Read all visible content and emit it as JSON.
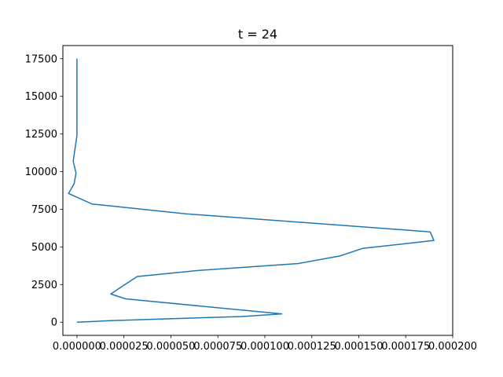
{
  "chart_data": {
    "type": "line",
    "title": "t = 24",
    "xlabel": "",
    "ylabel": "",
    "xlim": [
      -7.5e-06,
      0.0002
    ],
    "ylim": [
      -875,
      18375
    ],
    "x_ticks": [
      0.0,
      2.5e-05,
      5e-05,
      7.5e-05,
      0.0001,
      0.000125,
      0.00015,
      0.000175,
      0.0002
    ],
    "x_tick_labels": [
      "0.000000",
      "0.000025",
      "0.000050",
      "0.000075",
      "0.000100",
      "0.000125",
      "0.000150",
      "0.000175",
      "0.000200"
    ],
    "y_ticks": [
      0,
      2500,
      5000,
      7500,
      10000,
      12500,
      15000,
      17500
    ],
    "y_tick_labels": [
      "0",
      "2500",
      "5000",
      "7500",
      "10000",
      "12500",
      "15000",
      "17500"
    ],
    "grid": false,
    "colors": {
      "line": "#1f77b4",
      "axes": "#000000",
      "background": "#ffffff"
    },
    "series": [
      {
        "x": [
          0.0,
          1.8e-05,
          8.8e-05,
          0.000109,
          2.6e-05,
          1.8e-05,
          2.25e-05,
          3.2e-05,
          6.5e-05,
          0.000118,
          0.00014,
          0.000152,
          0.00019,
          0.000188,
          5.8e-05,
          8e-06,
          -4.5e-06,
          -1.5e-06,
          -5e-07,
          -2e-06,
          0.0,
          0.0,
          0.0,
          0.0
        ],
        "y": [
          0,
          100,
          380,
          550,
          1550,
          1870,
          2250,
          3030,
          3440,
          3900,
          4400,
          4900,
          5430,
          6000,
          7200,
          7850,
          8550,
          9200,
          9900,
          10700,
          12400,
          14000,
          16000,
          17500
        ]
      }
    ]
  }
}
